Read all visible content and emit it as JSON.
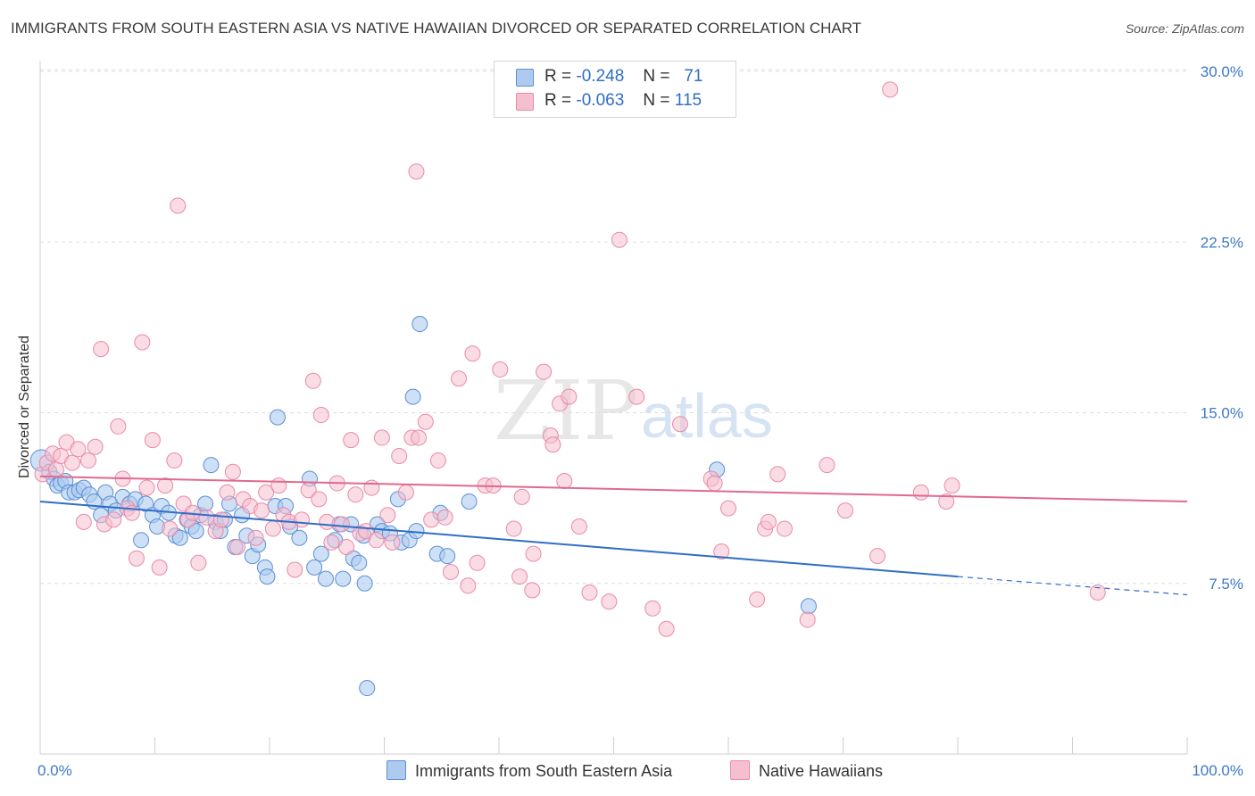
{
  "title": "IMMIGRANTS FROM SOUTH EASTERN ASIA VS NATIVE HAWAIIAN DIVORCED OR SEPARATED CORRELATION CHART",
  "source": "Source: ZipAtlas.com",
  "watermark": {
    "zip": "ZIP",
    "atlas": "atlas"
  },
  "legend": {
    "rows": [
      {
        "r_label": "R =",
        "r_value": "-0.248",
        "n_label": "N =",
        "n_value": "71"
      },
      {
        "r_label": "R =",
        "r_value": "-0.063",
        "n_label": "N =",
        "n_value": "115"
      }
    ]
  },
  "colors": {
    "blue_fill": "#aecbef",
    "blue_stroke": "#5d8fd6",
    "blue_line": "#2f6ec4",
    "pink_fill": "#f6bfd0",
    "pink_stroke": "#e98aa8",
    "pink_line": "#e0698f",
    "axis_text": "#3c78c8",
    "grid": "#dddddd"
  },
  "chart_data": {
    "type": "scatter",
    "title": "IMMIGRANTS FROM SOUTH EASTERN ASIA VS NATIVE HAWAIIAN DIVORCED OR SEPARATED CORRELATION CHART",
    "xlabel": "",
    "ylabel": "Divorced or Separated",
    "xlim": [
      0,
      100
    ],
    "ylim": [
      0,
      31
    ],
    "x_tick_labels": [
      "0.0%",
      "100.0%"
    ],
    "y_ticks": [
      7.5,
      15.0,
      22.5,
      30.0
    ],
    "y_tick_labels": [
      "7.5%",
      "15.0%",
      "22.5%",
      "30.0%"
    ],
    "grid": true,
    "legend_position": "top-center",
    "series": [
      {
        "name": "Immigrants from South Eastern Asia",
        "color": "#5d8fd6",
        "trend": {
          "x": [
            0,
            80
          ],
          "y": [
            11.1,
            7.8
          ],
          "dashed_extension_to": [
            100,
            7.0
          ]
        },
        "points": [
          [
            0.1,
            12.9
          ],
          [
            0.8,
            12.4
          ],
          [
            1.2,
            12.1
          ],
          [
            1.5,
            11.8
          ],
          [
            1.8,
            11.9
          ],
          [
            2.2,
            12.0
          ],
          [
            2.5,
            11.5
          ],
          [
            3.0,
            11.5
          ],
          [
            3.4,
            11.6
          ],
          [
            3.8,
            11.7
          ],
          [
            4.3,
            11.4
          ],
          [
            4.7,
            11.1
          ],
          [
            5.3,
            10.5
          ],
          [
            5.7,
            11.5
          ],
          [
            6.1,
            11.0
          ],
          [
            6.6,
            10.7
          ],
          [
            7.2,
            11.3
          ],
          [
            7.8,
            11.0
          ],
          [
            8.3,
            11.2
          ],
          [
            8.8,
            9.4
          ],
          [
            9.2,
            11.0
          ],
          [
            9.8,
            10.5
          ],
          [
            10.2,
            10.0
          ],
          [
            10.6,
            10.9
          ],
          [
            11.2,
            10.6
          ],
          [
            11.8,
            9.6
          ],
          [
            12.2,
            9.5
          ],
          [
            12.8,
            10.3
          ],
          [
            13.2,
            10.0
          ],
          [
            13.6,
            9.8
          ],
          [
            14.0,
            10.5
          ],
          [
            14.4,
            11.0
          ],
          [
            14.9,
            12.7
          ],
          [
            15.3,
            10.2
          ],
          [
            15.7,
            9.8
          ],
          [
            16.1,
            10.3
          ],
          [
            16.5,
            11.0
          ],
          [
            17.0,
            9.1
          ],
          [
            17.6,
            10.5
          ],
          [
            18.0,
            9.6
          ],
          [
            18.5,
            8.7
          ],
          [
            19.0,
            9.2
          ],
          [
            19.6,
            8.2
          ],
          [
            19.8,
            7.8
          ],
          [
            20.5,
            10.9
          ],
          [
            20.7,
            14.8
          ],
          [
            21.4,
            10.9
          ],
          [
            21.8,
            10.0
          ],
          [
            22.6,
            9.5
          ],
          [
            23.5,
            12.1
          ],
          [
            23.9,
            8.2
          ],
          [
            24.5,
            8.8
          ],
          [
            24.9,
            7.7
          ],
          [
            25.7,
            9.4
          ],
          [
            26.1,
            10.1
          ],
          [
            26.4,
            7.7
          ],
          [
            27.1,
            10.1
          ],
          [
            27.3,
            8.6
          ],
          [
            27.8,
            8.4
          ],
          [
            28.2,
            9.6
          ],
          [
            28.3,
            7.5
          ],
          [
            28.5,
            2.9
          ],
          [
            29.4,
            10.1
          ],
          [
            29.8,
            9.8
          ],
          [
            30.5,
            9.7
          ],
          [
            31.2,
            11.2
          ],
          [
            31.5,
            9.3
          ],
          [
            32.2,
            9.4
          ],
          [
            32.5,
            15.7
          ],
          [
            32.8,
            9.8
          ],
          [
            33.1,
            18.9
          ],
          [
            34.6,
            8.8
          ],
          [
            34.9,
            10.6
          ],
          [
            35.5,
            8.7
          ],
          [
            37.4,
            11.1
          ],
          [
            59.0,
            12.5
          ],
          [
            67.0,
            6.5
          ]
        ]
      },
      {
        "name": "Native Hawaiians",
        "color": "#e98aa8",
        "trend": {
          "x": [
            0,
            100
          ],
          "y": [
            12.2,
            11.1
          ]
        },
        "points": [
          [
            0.2,
            12.3
          ],
          [
            0.6,
            12.8
          ],
          [
            1.1,
            13.2
          ],
          [
            1.4,
            12.5
          ],
          [
            1.8,
            13.1
          ],
          [
            2.3,
            13.7
          ],
          [
            2.8,
            12.8
          ],
          [
            3.3,
            13.4
          ],
          [
            3.8,
            10.2
          ],
          [
            4.2,
            12.9
          ],
          [
            4.8,
            13.5
          ],
          [
            5.3,
            17.8
          ],
          [
            5.6,
            10.1
          ],
          [
            6.4,
            10.3
          ],
          [
            6.8,
            14.4
          ],
          [
            7.2,
            12.1
          ],
          [
            7.6,
            10.8
          ],
          [
            8.0,
            10.6
          ],
          [
            8.4,
            8.6
          ],
          [
            8.9,
            18.1
          ],
          [
            9.3,
            11.7
          ],
          [
            9.8,
            13.8
          ],
          [
            10.4,
            8.2
          ],
          [
            10.9,
            11.8
          ],
          [
            11.3,
            9.9
          ],
          [
            11.7,
            12.9
          ],
          [
            12.0,
            24.1
          ],
          [
            12.5,
            11.0
          ],
          [
            12.9,
            10.3
          ],
          [
            13.3,
            10.6
          ],
          [
            13.8,
            8.4
          ],
          [
            14.5,
            10.4
          ],
          [
            15.3,
            9.8
          ],
          [
            15.8,
            10.3
          ],
          [
            16.3,
            11.5
          ],
          [
            16.8,
            12.4
          ],
          [
            17.2,
            9.1
          ],
          [
            17.7,
            11.2
          ],
          [
            18.3,
            10.9
          ],
          [
            18.8,
            9.5
          ],
          [
            19.3,
            10.7
          ],
          [
            19.7,
            11.5
          ],
          [
            20.3,
            9.9
          ],
          [
            20.8,
            11.8
          ],
          [
            21.2,
            10.5
          ],
          [
            21.7,
            10.2
          ],
          [
            22.2,
            8.1
          ],
          [
            22.8,
            10.3
          ],
          [
            23.4,
            11.6
          ],
          [
            23.8,
            16.4
          ],
          [
            24.3,
            11.2
          ],
          [
            24.5,
            14.9
          ],
          [
            25.0,
            10.2
          ],
          [
            25.4,
            9.3
          ],
          [
            25.9,
            11.9
          ],
          [
            26.3,
            10.1
          ],
          [
            26.7,
            9.1
          ],
          [
            27.1,
            13.8
          ],
          [
            27.5,
            11.4
          ],
          [
            27.9,
            9.7
          ],
          [
            28.4,
            9.8
          ],
          [
            28.9,
            11.7
          ],
          [
            29.3,
            9.4
          ],
          [
            29.8,
            13.9
          ],
          [
            30.3,
            10.5
          ],
          [
            30.7,
            9.3
          ],
          [
            31.3,
            13.1
          ],
          [
            31.9,
            11.5
          ],
          [
            32.4,
            13.9
          ],
          [
            32.8,
            25.6
          ],
          [
            33.0,
            13.9
          ],
          [
            33.6,
            14.6
          ],
          [
            34.1,
            10.3
          ],
          [
            34.7,
            12.9
          ],
          [
            35.3,
            10.4
          ],
          [
            35.8,
            8.0
          ],
          [
            36.5,
            16.5
          ],
          [
            37.3,
            7.4
          ],
          [
            37.7,
            17.6
          ],
          [
            38.1,
            8.4
          ],
          [
            38.8,
            11.8
          ],
          [
            39.5,
            11.8
          ],
          [
            40.1,
            16.9
          ],
          [
            41.3,
            9.9
          ],
          [
            41.8,
            7.8
          ],
          [
            42.0,
            11.3
          ],
          [
            42.9,
            7.2
          ],
          [
            43.0,
            8.8
          ],
          [
            43.9,
            16.8
          ],
          [
            44.5,
            14.0
          ],
          [
            44.7,
            13.6
          ],
          [
            45.3,
            15.4
          ],
          [
            45.7,
            12.0
          ],
          [
            46.1,
            15.7
          ],
          [
            47.0,
            10.0
          ],
          [
            47.9,
            7.1
          ],
          [
            49.6,
            6.7
          ],
          [
            50.5,
            22.6
          ],
          [
            52.0,
            15.7
          ],
          [
            53.4,
            6.4
          ],
          [
            54.6,
            5.5
          ],
          [
            55.8,
            14.5
          ],
          [
            58.5,
            12.1
          ],
          [
            58.8,
            11.9
          ],
          [
            59.4,
            8.9
          ],
          [
            60.0,
            10.8
          ],
          [
            62.5,
            6.8
          ],
          [
            63.2,
            9.9
          ],
          [
            63.5,
            10.2
          ],
          [
            64.3,
            12.3
          ],
          [
            64.9,
            9.9
          ],
          [
            66.9,
            5.9
          ],
          [
            68.6,
            12.7
          ],
          [
            70.2,
            10.7
          ],
          [
            73.0,
            8.7
          ],
          [
            74.1,
            29.2
          ],
          [
            76.8,
            11.5
          ],
          [
            79.0,
            11.1
          ],
          [
            79.5,
            11.8
          ],
          [
            92.2,
            7.1
          ]
        ]
      }
    ]
  },
  "bottom_legend": [
    {
      "label": "Immigrants from South Eastern Asia"
    },
    {
      "label": "Native Hawaiians"
    }
  ]
}
